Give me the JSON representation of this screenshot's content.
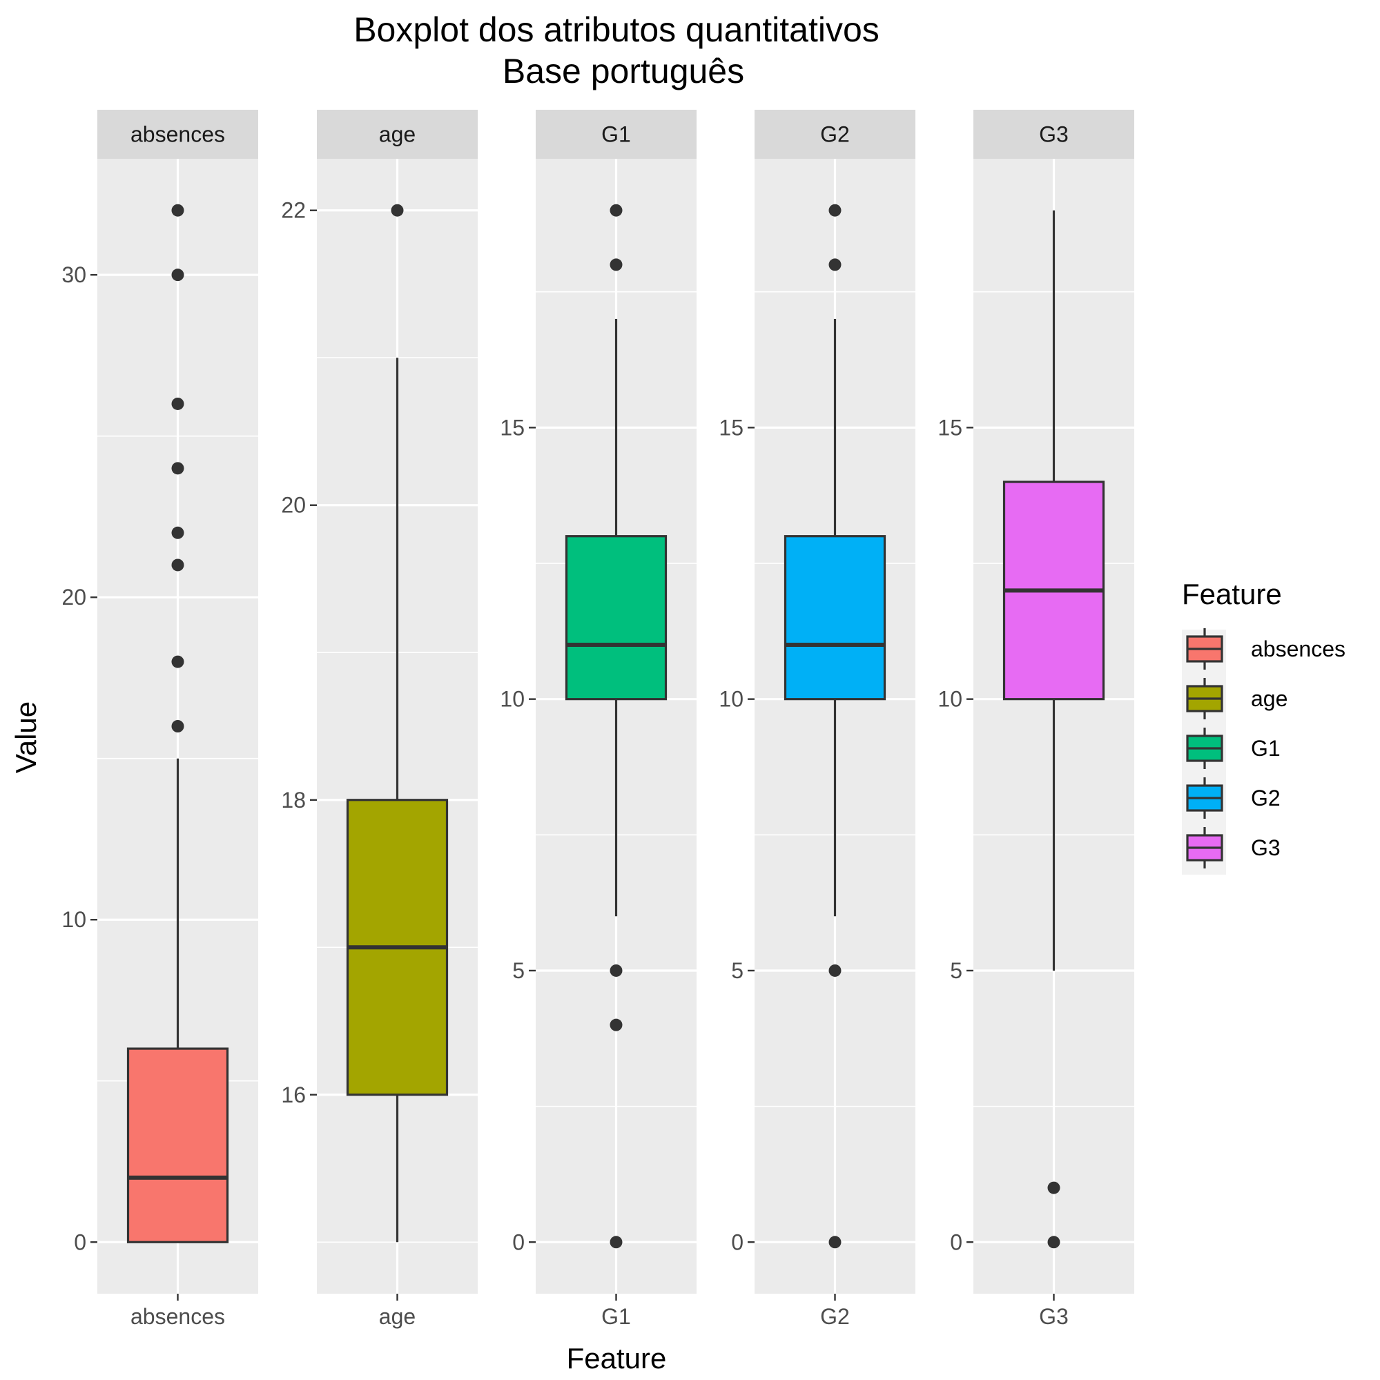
{
  "chart_data": {
    "type": "boxplot",
    "title": "Boxplot dos atributos quantitativos",
    "subtitle": "Base português",
    "xlabel": "Feature",
    "ylabel": "Value",
    "legend": {
      "title": "Feature",
      "placement": "right",
      "entries": [
        {
          "label": "absences",
          "color": "#F8766D"
        },
        {
          "label": "age",
          "color": "#A3A500"
        },
        {
          "label": "G1",
          "color": "#00BF7D"
        },
        {
          "label": "G2",
          "color": "#00B0F6"
        },
        {
          "label": "G3",
          "color": "#E76BF3"
        }
      ]
    },
    "facets": [
      {
        "name": "absences",
        "color": "#F8766D",
        "ylim": [
          -1.6,
          33.6
        ],
        "yticks": [
          0,
          10,
          20,
          30
        ],
        "ytick_labels": [
          "0",
          "10",
          "20",
          "30"
        ],
        "min": 0,
        "q1": 0,
        "median": 2,
        "q3": 6,
        "max": 15,
        "outliers": [
          16,
          18,
          21,
          22,
          24,
          26,
          30,
          32
        ]
      },
      {
        "name": "age",
        "color": "#A3A500",
        "ylim": [
          14.65,
          22.35
        ],
        "yticks": [
          16,
          18,
          20,
          22
        ],
        "ytick_labels": [
          "16",
          "18",
          "20",
          "22"
        ],
        "min": 15,
        "q1": 16,
        "median": 17,
        "q3": 18,
        "max": 21,
        "outliers": [
          22
        ]
      },
      {
        "name": "G1",
        "color": "#00BF7D",
        "ylim": [
          -0.95,
          19.95
        ],
        "yticks": [
          0,
          5,
          10,
          15
        ],
        "ytick_labels": [
          "0",
          "5",
          "10",
          "15"
        ],
        "min": 6,
        "q1": 10,
        "median": 11,
        "q3": 13,
        "max": 17,
        "outliers": [
          0,
          4,
          5,
          18,
          19
        ]
      },
      {
        "name": "G2",
        "color": "#00B0F6",
        "ylim": [
          -0.95,
          19.95
        ],
        "yticks": [
          0,
          5,
          10,
          15
        ],
        "ytick_labels": [
          "0",
          "5",
          "10",
          "15"
        ],
        "min": 6,
        "q1": 10,
        "median": 11,
        "q3": 13,
        "max": 17,
        "outliers": [
          0,
          5,
          18,
          19
        ]
      },
      {
        "name": "G3",
        "color": "#E76BF3",
        "ylim": [
          -0.95,
          19.95
        ],
        "yticks": [
          0,
          5,
          10,
          15
        ],
        "ytick_labels": [
          "0",
          "5",
          "10",
          "15"
        ],
        "min": 5,
        "q1": 10,
        "median": 12,
        "q3": 14,
        "max": 19,
        "outliers": [
          0,
          1
        ]
      }
    ],
    "grid": true
  }
}
